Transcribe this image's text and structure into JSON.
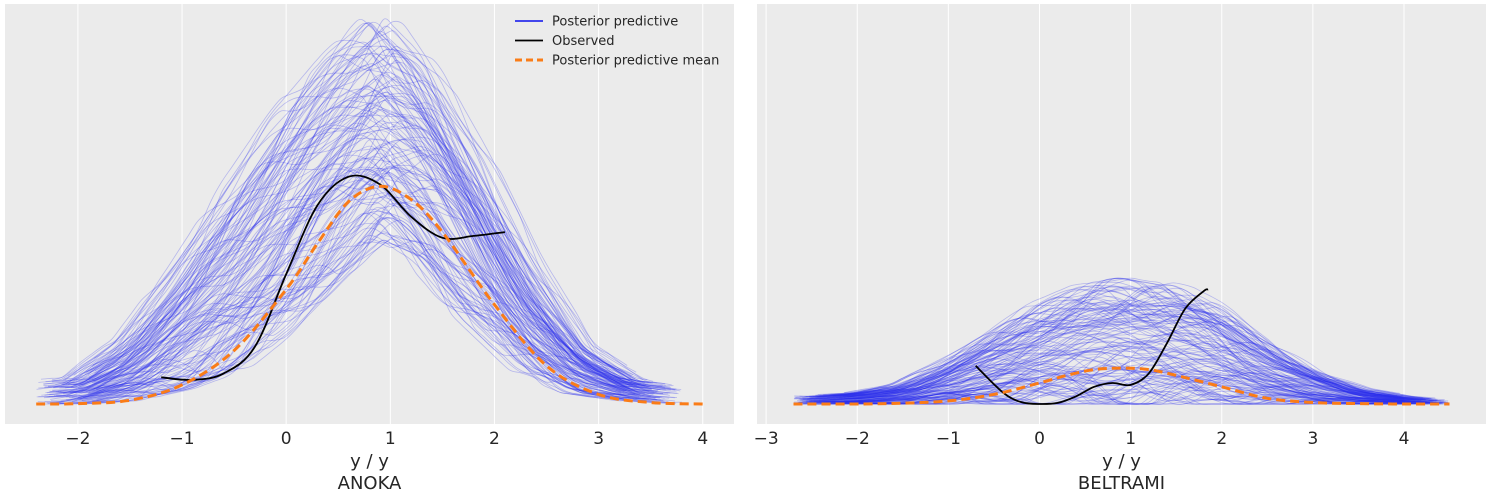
{
  "colors": {
    "panel_bg": "#ebebeb",
    "grid": "#ffffff",
    "posterior_predictive": "#2a2eec",
    "observed": "#000000",
    "posterior_predictive_mean": "#fa7c17",
    "text": "#262626"
  },
  "legend": {
    "placement": "top-right of first panel",
    "entries": [
      {
        "label": "Posterior predictive",
        "style": "solid",
        "color": "#2a2eec"
      },
      {
        "label": "Observed",
        "style": "solid",
        "color": "#000000"
      },
      {
        "label": "Posterior predictive mean",
        "style": "dashed",
        "color": "#fa7c17"
      }
    ]
  },
  "chart_data": [
    {
      "type": "line",
      "title": "ANOKA",
      "xlabel": "y / y",
      "xlim": [
        -2.7,
        4.3
      ],
      "ylim": [
        0,
        1
      ],
      "grid": true,
      "x_ticks": [
        -2,
        -1,
        0,
        1,
        2,
        3,
        4
      ],
      "x_tick_labels": [
        "−2",
        "−1",
        "0",
        "1",
        "2",
        "3",
        "4"
      ],
      "posterior_predictive_band": {
        "x": [
          -2.4,
          -2.0,
          -1.5,
          -1.0,
          -0.5,
          0.0,
          0.5,
          0.9,
          1.3,
          1.8,
          2.3,
          2.8,
          3.3,
          3.8
        ],
        "lower": [
          0.0,
          0.0,
          0.01,
          0.04,
          0.09,
          0.2,
          0.34,
          0.43,
          0.38,
          0.22,
          0.09,
          0.03,
          0.01,
          0.0
        ],
        "upper": [
          0.06,
          0.07,
          0.17,
          0.35,
          0.56,
          0.76,
          0.92,
          1.01,
          0.9,
          0.66,
          0.38,
          0.16,
          0.07,
          0.05
        ]
      },
      "series": [
        {
          "name": "Observed",
          "x": [
            -1.2,
            -0.9,
            -0.6,
            -0.3,
            0.0,
            0.3,
            0.6,
            0.9,
            1.2,
            1.5,
            1.8,
            2.1
          ],
          "y": [
            0.07,
            0.063,
            0.08,
            0.15,
            0.34,
            0.52,
            0.595,
            0.575,
            0.49,
            0.435,
            0.44,
            0.45
          ]
        },
        {
          "name": "Posterior predictive mean",
          "x": [
            -2.4,
            -2.0,
            -1.5,
            -1.0,
            -0.5,
            0.0,
            0.3,
            0.6,
            0.9,
            1.2,
            1.5,
            2.0,
            2.5,
            3.0,
            3.5,
            4.0
          ],
          "y": [
            0.0,
            0.001,
            0.01,
            0.05,
            0.14,
            0.3,
            0.42,
            0.53,
            0.57,
            0.535,
            0.45,
            0.26,
            0.1,
            0.025,
            0.004,
            0.0
          ]
        }
      ]
    },
    {
      "type": "line",
      "title": "BELTRAMI",
      "xlabel": "y / y",
      "xlim": [
        -3.1,
        4.9
      ],
      "ylim": [
        0,
        1
      ],
      "grid": true,
      "x_ticks": [
        -3,
        -2,
        -1,
        0,
        1,
        2,
        3,
        4
      ],
      "x_tick_labels": [
        "−3",
        "−2",
        "−1",
        "0",
        "1",
        "2",
        "3",
        "4"
      ],
      "posterior_predictive_band": {
        "x": [
          -2.7,
          -2.0,
          -1.5,
          -1.0,
          -0.5,
          0.0,
          0.5,
          1.0,
          1.5,
          2.0,
          2.5,
          3.0,
          3.5,
          4.0,
          4.5
        ],
        "lower": [
          0.0,
          0.0,
          0.0,
          0.0,
          0.0,
          0.0,
          0.0,
          0.0,
          0.0,
          0.0,
          0.0,
          0.0,
          0.0,
          0.0,
          0.0
        ],
        "upper": [
          0.02,
          0.03,
          0.05,
          0.11,
          0.18,
          0.26,
          0.31,
          0.33,
          0.31,
          0.25,
          0.16,
          0.09,
          0.04,
          0.02,
          0.01
        ]
      },
      "series": [
        {
          "name": "Observed",
          "x": [
            -0.7,
            -0.4,
            -0.2,
            0.0,
            0.2,
            0.4,
            0.6,
            0.8,
            1.0,
            1.2,
            1.4,
            1.6,
            1.8,
            1.85
          ],
          "y": [
            0.1,
            0.03,
            0.005,
            0.0,
            0.003,
            0.02,
            0.045,
            0.055,
            0.05,
            0.08,
            0.16,
            0.25,
            0.295,
            0.3
          ]
        },
        {
          "name": "Posterior predictive mean",
          "x": [
            -2.7,
            -2.0,
            -1.5,
            -1.0,
            -0.5,
            0.0,
            0.3,
            0.6,
            0.9,
            1.2,
            1.5,
            2.0,
            2.5,
            3.0,
            3.5,
            4.0,
            4.5
          ],
          "y": [
            0.0,
            0.0,
            0.002,
            0.008,
            0.025,
            0.055,
            0.075,
            0.09,
            0.094,
            0.09,
            0.075,
            0.045,
            0.015,
            0.004,
            0.001,
            0.0,
            0.0
          ]
        }
      ]
    }
  ]
}
